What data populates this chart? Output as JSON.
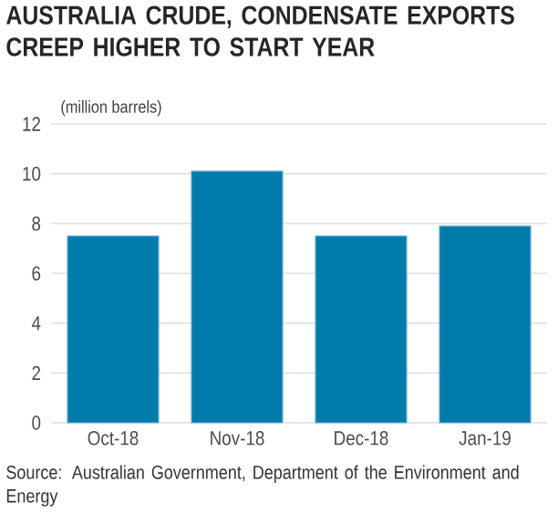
{
  "chart_data": {
    "type": "bar",
    "title": "AUSTRALIA CRUDE, CONDENSATE EXPORTS CREEP HIGHER TO START YEAR",
    "ylabel": "(million barrels)",
    "categories": [
      "Oct-18",
      "Nov-18",
      "Dec-18",
      "Jan-19"
    ],
    "values": [
      7.5,
      10.1,
      7.5,
      7.9
    ],
    "color": "#007bab",
    "ylim": [
      0,
      12
    ],
    "yticks": [
      0,
      2,
      4,
      6,
      8,
      10,
      12
    ],
    "grid": "y",
    "annotations": [
      "Source: Australian Government, Department of the Environment and Energy"
    ]
  }
}
